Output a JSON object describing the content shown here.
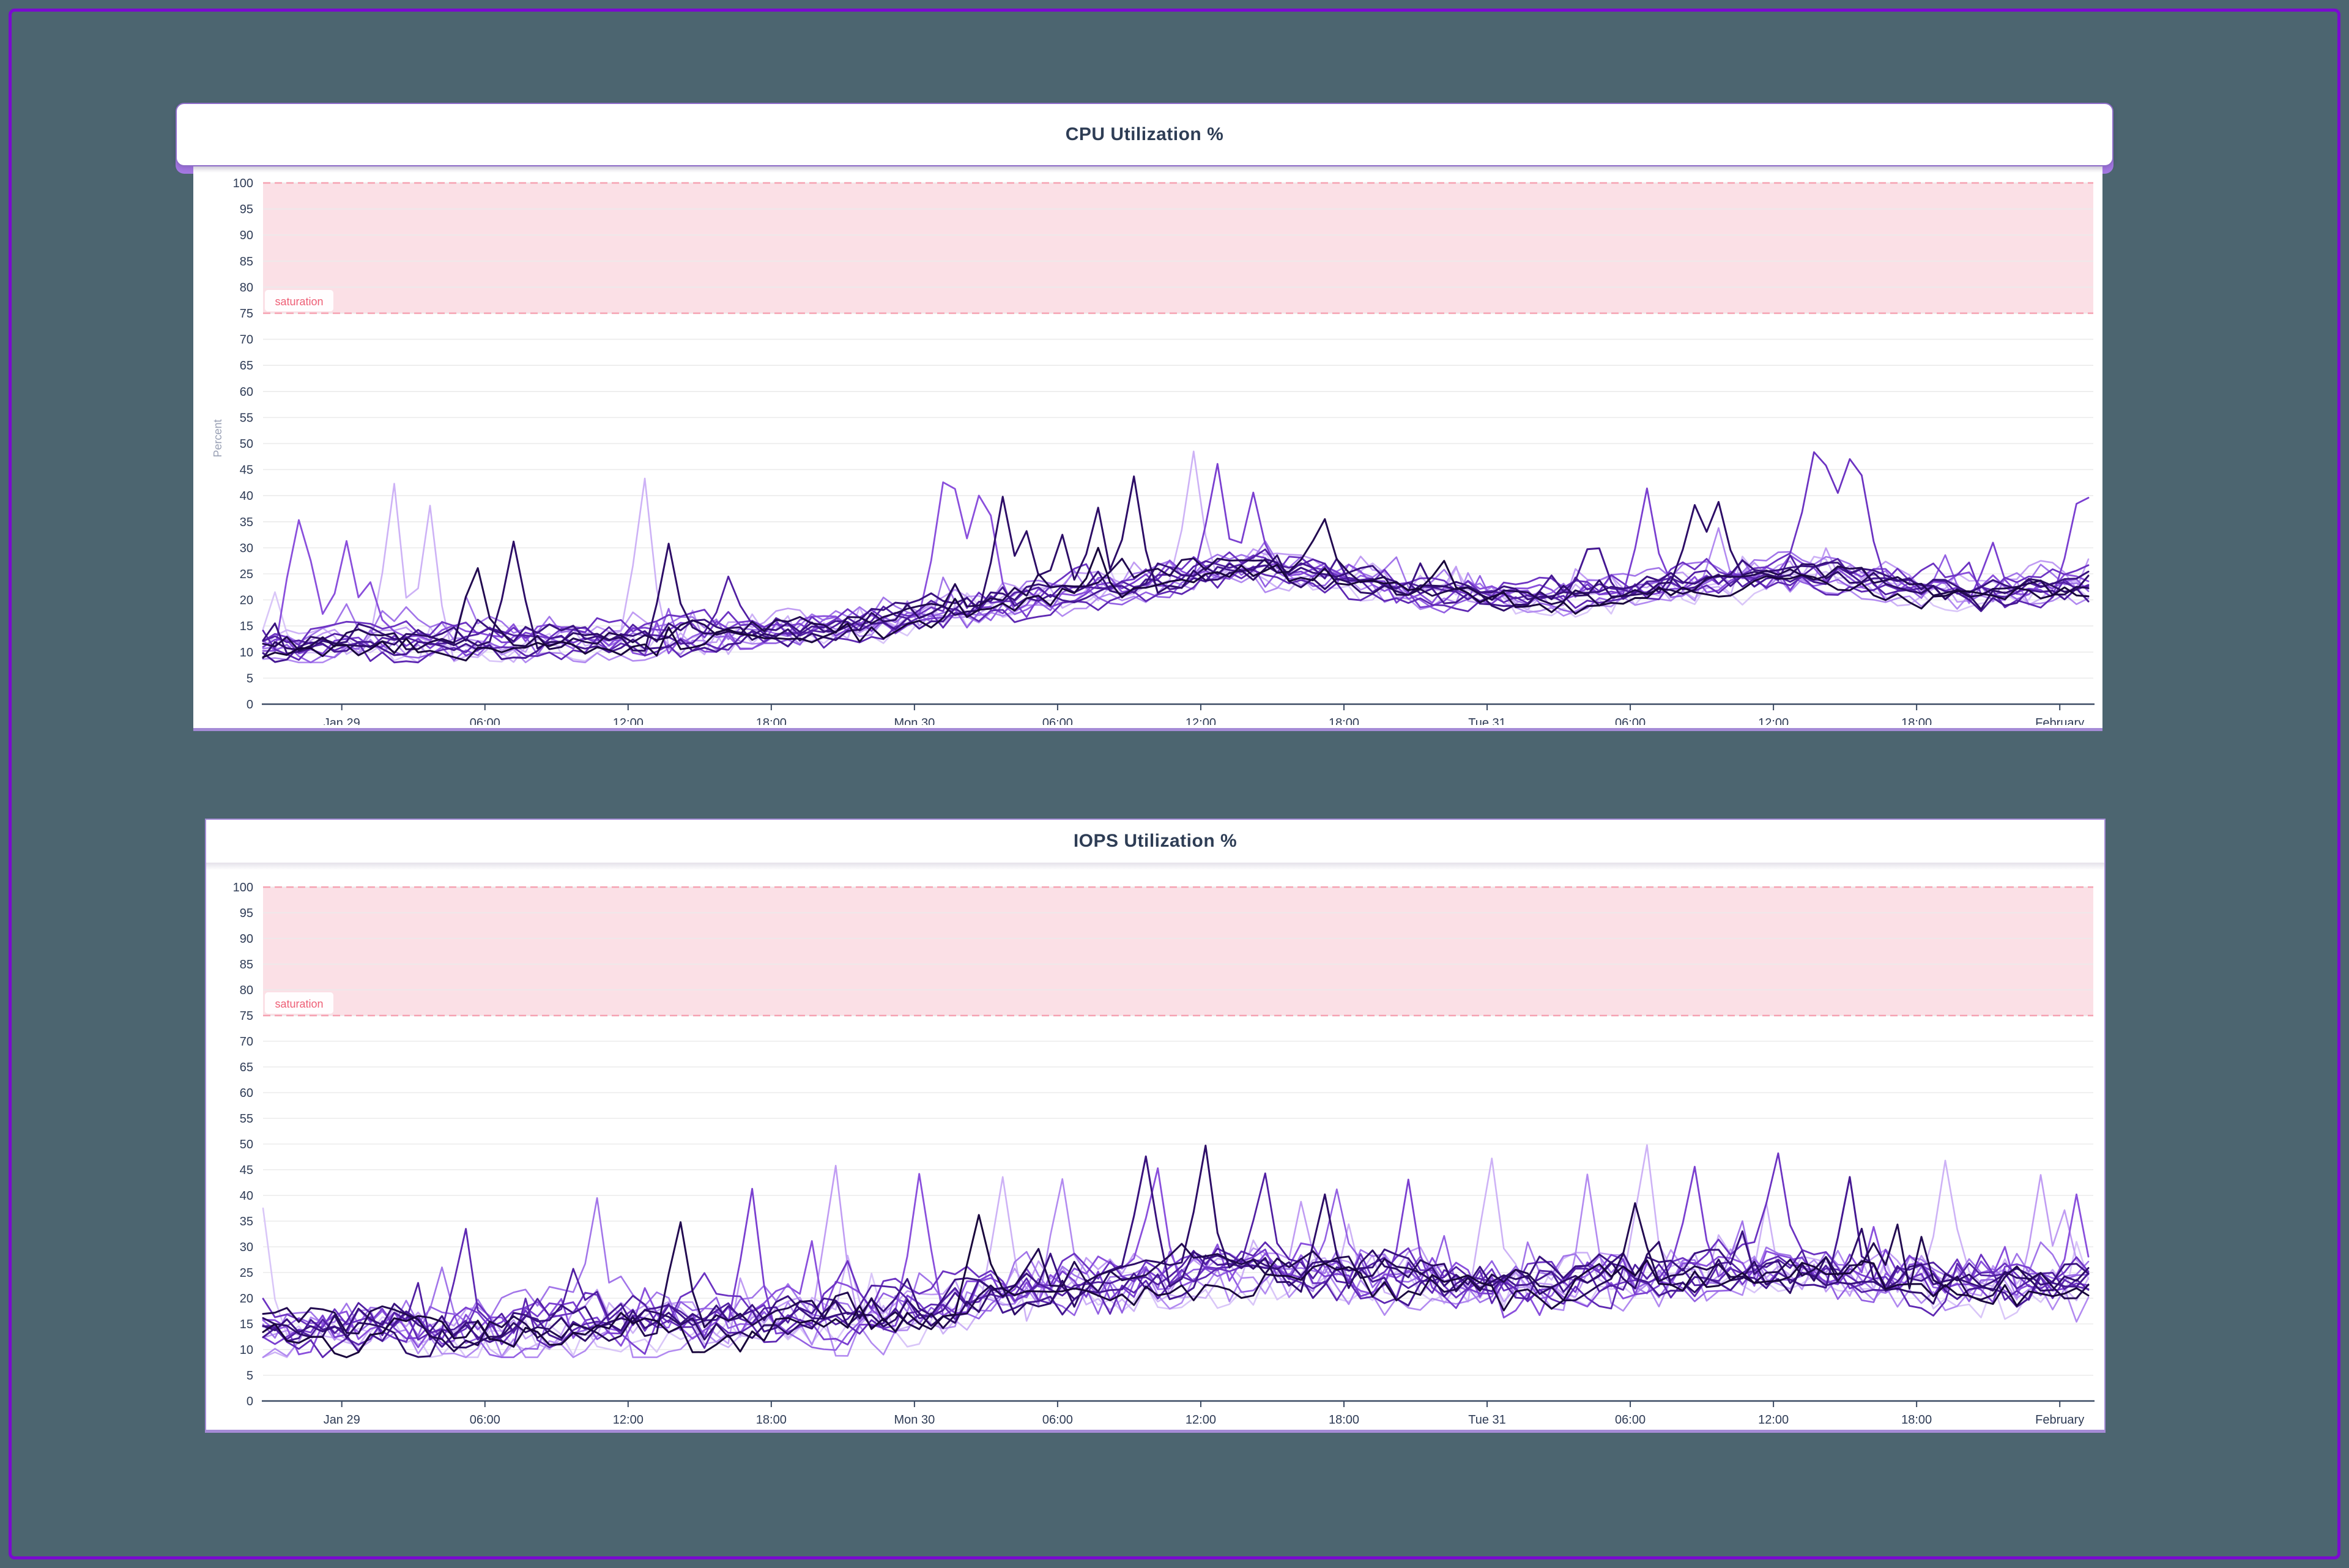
{
  "page": {
    "background": "#4c6570",
    "frame_color": "#7a0ad0"
  },
  "style": {
    "grid_color": "#ebebeb",
    "axis_color": "#3b4a63",
    "tick_label_color": "#2e3b55",
    "axis_title_color": "#99a0b4",
    "band_fill": "#fbe0e6",
    "band_edge": "#f5a2b1",
    "band_label_color": "#ee5e75",
    "header_border": "#8d6bc8",
    "back_card": "#a478e2",
    "panel_bottom_border": "#a58bd6"
  },
  "chart_data": [
    {
      "type": "line",
      "title": "CPU Utilization %",
      "ylabel": "Percent",
      "ylim": [
        0,
        100
      ],
      "y_tick_step": 5,
      "grid": true,
      "legend": "none",
      "x_ticks": {
        "labels": [
          "Jan 29",
          "06:00",
          "12:00",
          "18:00",
          "Mon 30",
          "06:00",
          "12:00",
          "18:00",
          "Tue 31",
          "06:00",
          "12:00",
          "18:00",
          "February"
        ],
        "first_offset_hours": 3.3,
        "interval_hours": 6,
        "total_hours": 76.5,
        "sample_step_hours": 0.5
      },
      "band": {
        "label": "saturation",
        "from": 75,
        "to": 100
      },
      "envelope": [
        [
          0,
          11.3
        ],
        [
          4,
          11.5
        ],
        [
          8,
          11.8
        ],
        [
          12,
          12.2
        ],
        [
          16,
          12.6
        ],
        [
          20,
          13.2
        ],
        [
          24,
          14.5
        ],
        [
          27,
          16.5
        ],
        [
          30,
          18.5
        ],
        [
          33,
          20.5
        ],
        [
          36,
          22.5
        ],
        [
          39,
          25.0
        ],
        [
          42,
          26.5
        ],
        [
          45,
          24.5
        ],
        [
          48,
          22.0
        ],
        [
          51,
          20.8
        ],
        [
          54,
          20.3
        ],
        [
          57,
          21.5
        ],
        [
          60,
          23.5
        ],
        [
          63,
          25.3
        ],
        [
          66,
          24.5
        ],
        [
          69,
          22.5
        ],
        [
          72,
          21.3
        ],
        [
          76.5,
          22.8
        ]
      ],
      "value_floor": 8,
      "series": [
        {
          "color": "#d9c6f8",
          "width": 2.6,
          "seed": 11,
          "amp": 2.6,
          "bias": -1.5,
          "spikes": [
            [
              0.3,
              21.5
            ]
          ]
        },
        {
          "color": "#cdb2f6",
          "width": 2.6,
          "seed": 12,
          "amp": 2.8,
          "bias": -0.5,
          "spikes": [
            [
              5.3,
              42.3
            ],
            [
              7.2,
              38.1
            ],
            [
              15.8,
              43.3
            ],
            [
              38.9,
              48.5
            ]
          ]
        },
        {
          "color": "#c09cf3",
          "width": 2.6,
          "seed": 13,
          "amp": 2.4,
          "bias": 0.8,
          "spikes": [
            [
              74.4,
              27.5
            ]
          ]
        },
        {
          "color": "#b28af0",
          "width": 2.6,
          "seed": 14,
          "amp": 2.2,
          "bias": -2.2,
          "spikes": [
            [
              60.9,
              33.8
            ]
          ]
        },
        {
          "color": "#a275e9",
          "width": 2.6,
          "seed": 15,
          "amp": 2.5,
          "bias": 1.5,
          "spikes": [
            [
              47.5,
              28.2
            ]
          ]
        },
        {
          "color": "#9360e2",
          "width": 2.6,
          "seed": 16,
          "amp": 2.2,
          "bias": -1.0,
          "spikes": [
            [
              70.3,
              28.6
            ]
          ]
        },
        {
          "color": "#8a4fdc",
          "width": 2.8,
          "seed": 17,
          "amp": 2.4,
          "bias": 0.3,
          "spikes": [
            [
              1.4,
              41.0
            ],
            [
              2.1,
              27.5
            ],
            [
              3.7,
              31.3
            ],
            [
              4.4,
              23.4
            ],
            [
              28.3,
              43.5
            ],
            [
              29.1,
              41.3
            ],
            [
              29.8,
              42.8
            ],
            [
              30.4,
              36.2
            ]
          ]
        },
        {
          "color": "#7a3fd0",
          "width": 2.8,
          "seed": 18,
          "amp": 2.1,
          "bias": -0.4,
          "spikes": [
            [
              40.2,
              46.1
            ],
            [
              41.3,
              40.6
            ],
            [
              58.1,
              41.4
            ],
            [
              72.6,
              31.0
            ],
            [
              75.9,
              37.6
            ],
            [
              76.5,
              39.6
            ]
          ]
        },
        {
          "color": "#6c33c2",
          "width": 2.8,
          "seed": 19,
          "amp": 2.0,
          "bias": 2.0,
          "spikes": [
            [
              65.2,
              50.2
            ],
            [
              65.6,
              45.8
            ],
            [
              66.7,
              49.3
            ],
            [
              67.1,
              43.9
            ]
          ]
        },
        {
          "color": "#5e28b2",
          "width": 2.8,
          "seed": 20,
          "amp": 2.0,
          "bias": -1.8,
          "spikes": []
        },
        {
          "color": "#511fa2",
          "width": 2.8,
          "seed": 21,
          "amp": 1.9,
          "bias": 0.6,
          "spikes": [
            [
              19.4,
              24.5
            ]
          ]
        },
        {
          "color": "#451892",
          "width": 3.0,
          "seed": 22,
          "amp": 1.9,
          "bias": -0.9,
          "spikes": [
            [
              55.3,
              29.6
            ],
            [
              56.1,
              29.9
            ]
          ]
        },
        {
          "color": "#39127e",
          "width": 3.0,
          "seed": 23,
          "amp": 1.8,
          "bias": 1.2,
          "spikes": [
            [
              63.9,
              26.2
            ]
          ]
        },
        {
          "color": "#2d0d67",
          "width": 3.0,
          "seed": 24,
          "amp": 1.9,
          "bias": -0.2,
          "spikes": [
            [
              10.4,
              31.2
            ],
            [
              16.8,
              30.8
            ],
            [
              30.9,
              39.8
            ],
            [
              32.1,
              33.2
            ],
            [
              33.6,
              32.5
            ],
            [
              34.9,
              37.7
            ],
            [
              36.4,
              43.7
            ],
            [
              59.8,
              38.2
            ],
            [
              61.2,
              38.8
            ]
          ]
        },
        {
          "color": "#220a50",
          "width": 3.0,
          "seed": 25,
          "amp": 1.8,
          "bias": 0.5,
          "spikes": [
            [
              9.2,
              26.1
            ],
            [
              44.3,
              35.5
            ]
          ]
        },
        {
          "color": "#19063c",
          "width": 3.0,
          "seed": 26,
          "amp": 1.7,
          "bias": -1.2,
          "spikes": [
            [
              35.2,
              30.0
            ],
            [
              49.6,
              27.5
            ]
          ]
        }
      ]
    },
    {
      "type": "line",
      "title": "IOPS Utilization %",
      "ylabel": null,
      "ylim": [
        0,
        100
      ],
      "y_tick_step": 5,
      "grid": true,
      "legend": "none",
      "x_ticks": {
        "labels": [
          "Jan 29",
          "06:00",
          "12:00",
          "18:00",
          "Mon 30",
          "06:00",
          "12:00",
          "18:00",
          "Tue 31",
          "06:00",
          "12:00",
          "18:00",
          "February"
        ],
        "first_offset_hours": 3.3,
        "interval_hours": 6,
        "total_hours": 76.5,
        "sample_step_hours": 0.5
      },
      "band": {
        "label": "saturation",
        "from": 75,
        "to": 100
      },
      "envelope": [
        [
          0,
          13.5
        ],
        [
          4,
          13.8
        ],
        [
          8,
          14.0
        ],
        [
          12,
          14.5
        ],
        [
          16,
          15.0
        ],
        [
          20,
          15.5
        ],
        [
          24,
          16.5
        ],
        [
          27,
          18.0
        ],
        [
          30,
          20.0
        ],
        [
          33,
          22.0
        ],
        [
          36,
          23.5
        ],
        [
          39,
          25.5
        ],
        [
          42,
          26.5
        ],
        [
          45,
          25.0
        ],
        [
          48,
          23.5
        ],
        [
          51,
          22.5
        ],
        [
          54,
          22.5
        ],
        [
          57,
          24.0
        ],
        [
          60,
          25.5
        ],
        [
          63,
          26.0
        ],
        [
          66,
          25.0
        ],
        [
          69,
          23.5
        ],
        [
          72,
          22.5
        ],
        [
          76.5,
          23.5
        ]
      ],
      "value_floor": 8.5,
      "series": [
        {
          "color": "#d9c6f8",
          "width": 2.6,
          "seed": 31,
          "amp": 4.2,
          "bias": -1.5,
          "spikes": [
            [
              0.2,
              37.5
            ]
          ]
        },
        {
          "color": "#cdb2f6",
          "width": 2.6,
          "seed": 32,
          "amp": 4.5,
          "bias": -0.3,
          "spikes": [
            [
              31.0,
              43.6
            ],
            [
              51.3,
              47.2
            ],
            [
              58.2,
              49.8
            ],
            [
              70.6,
              46.8
            ]
          ]
        },
        {
          "color": "#c09cf3",
          "width": 2.6,
          "seed": 33,
          "amp": 4.0,
          "bias": 1.0,
          "spikes": [
            [
              24.1,
              45.8
            ],
            [
              74.4,
              44.0
            ]
          ]
        },
        {
          "color": "#b28af0",
          "width": 2.6,
          "seed": 34,
          "amp": 4.4,
          "bias": -2.0,
          "spikes": [
            [
              33.4,
              43.2
            ],
            [
              55.6,
              44.1
            ]
          ]
        },
        {
          "color": "#a275e9",
          "width": 2.6,
          "seed": 35,
          "amp": 4.0,
          "bias": 1.8,
          "spikes": [
            [
              13.9,
              39.5
            ]
          ]
        },
        {
          "color": "#9360e2",
          "width": 2.6,
          "seed": 36,
          "amp": 3.8,
          "bias": -0.8,
          "spikes": [
            [
              45.1,
              41.2
            ]
          ]
        },
        {
          "color": "#8a4fdc",
          "width": 2.8,
          "seed": 37,
          "amp": 4.2,
          "bias": 0.4,
          "spikes": [
            [
              27.5,
              44.2
            ],
            [
              37.4,
              45.3
            ],
            [
              76.2,
              40.2
            ]
          ]
        },
        {
          "color": "#7a3fd0",
          "width": 2.8,
          "seed": 38,
          "amp": 3.8,
          "bias": -0.5,
          "spikes": [
            [
              20.5,
              41.3
            ],
            [
              48.2,
              43.1
            ],
            [
              60.1,
              45.6
            ]
          ]
        },
        {
          "color": "#6c33c2",
          "width": 2.8,
          "seed": 39,
          "amp": 3.6,
          "bias": 2.0,
          "spikes": [
            [
              63.3,
              48.2
            ]
          ]
        },
        {
          "color": "#5e28b2",
          "width": 2.8,
          "seed": 40,
          "amp": 3.6,
          "bias": -1.6,
          "spikes": [
            [
              8.7,
              33.5
            ]
          ]
        },
        {
          "color": "#511fa2",
          "width": 2.8,
          "seed": 41,
          "amp": 3.4,
          "bias": 0.7,
          "spikes": [
            [
              41.8,
              44.3
            ]
          ]
        },
        {
          "color": "#451892",
          "width": 3.0,
          "seed": 42,
          "amp": 3.4,
          "bias": -1.0,
          "spikes": [
            [
              66.3,
              43.6
            ]
          ]
        },
        {
          "color": "#39127e",
          "width": 3.0,
          "seed": 43,
          "amp": 3.2,
          "bias": 1.3,
          "spikes": [
            [
              36.9,
              47.6
            ]
          ]
        },
        {
          "color": "#2d0d67",
          "width": 3.0,
          "seed": 44,
          "amp": 3.4,
          "bias": -0.2,
          "spikes": [
            [
              39.3,
              49.7
            ],
            [
              44.5,
              40.2
            ]
          ]
        },
        {
          "color": "#220a50",
          "width": 3.0,
          "seed": 45,
          "amp": 3.2,
          "bias": 0.4,
          "spikes": [
            [
              17.3,
              34.8
            ],
            [
              57.4,
              38.5
            ]
          ]
        },
        {
          "color": "#19063c",
          "width": 3.0,
          "seed": 46,
          "amp": 3.0,
          "bias": -1.3,
          "spikes": [
            [
              29.9,
              36.2
            ]
          ]
        }
      ]
    }
  ]
}
